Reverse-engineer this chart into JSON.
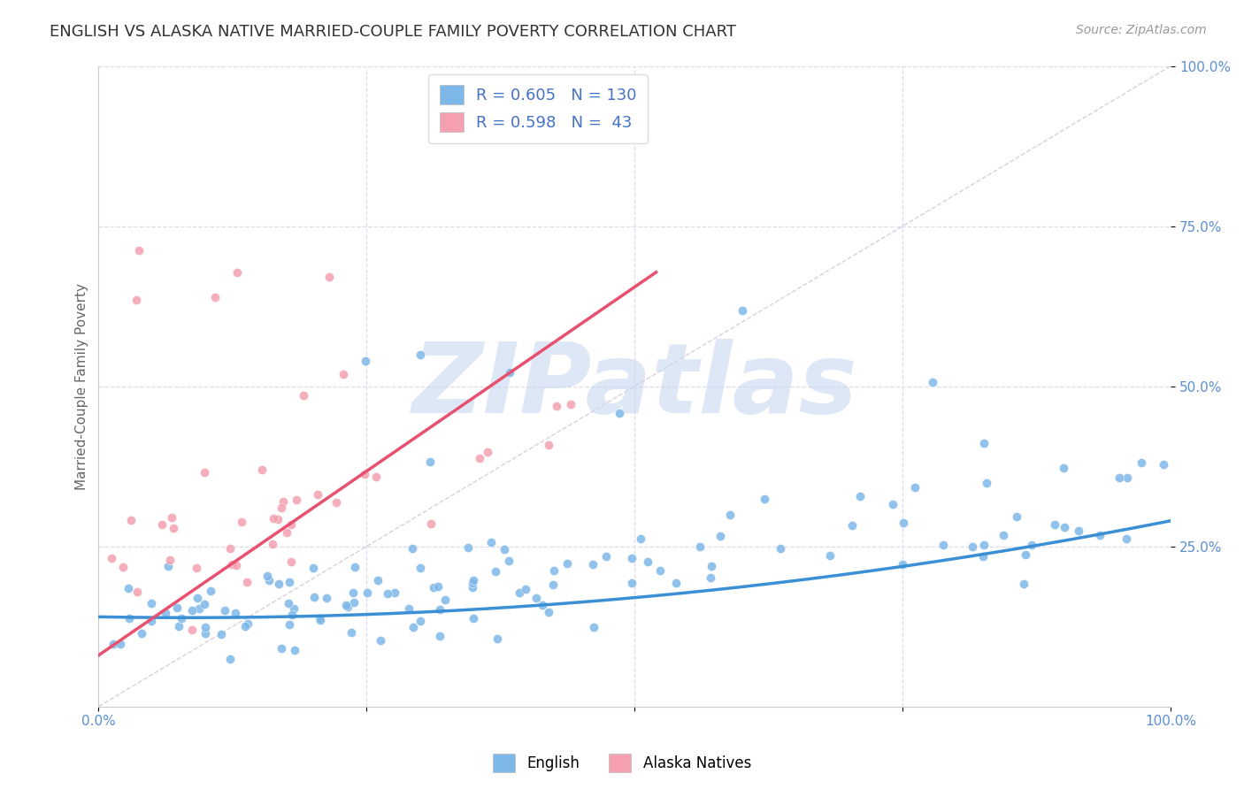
{
  "title": "ENGLISH VS ALASKA NATIVE MARRIED-COUPLE FAMILY POVERTY CORRELATION CHART",
  "source_text": "Source: ZipAtlas.com",
  "ylabel": "Married-Couple Family Poverty",
  "xlim": [
    0,
    1
  ],
  "ylim": [
    0,
    1
  ],
  "xticks": [
    0.0,
    0.25,
    0.5,
    0.75,
    1.0
  ],
  "yticks": [
    0.25,
    0.5,
    0.75,
    1.0
  ],
  "english_color": "#7EB8E8",
  "alaska_color": "#F4A0B0",
  "english_R": 0.605,
  "english_N": 130,
  "alaska_R": 0.598,
  "alaska_N": 43,
  "english_line_color": "#3B8FD4",
  "alaska_line_color": "#E85070",
  "ref_line_color": "#CCBBCC",
  "watermark": "ZIPatlas",
  "watermark_color": "#C8D8F0",
  "title_color": "#333333",
  "title_fontsize": 13,
  "axis_label_color": "#666666",
  "tick_color": "#5B8FD4",
  "grid_color": "#DCDCEC",
  "legend_color": "#4472C4",
  "background_color": "#FFFFFF"
}
